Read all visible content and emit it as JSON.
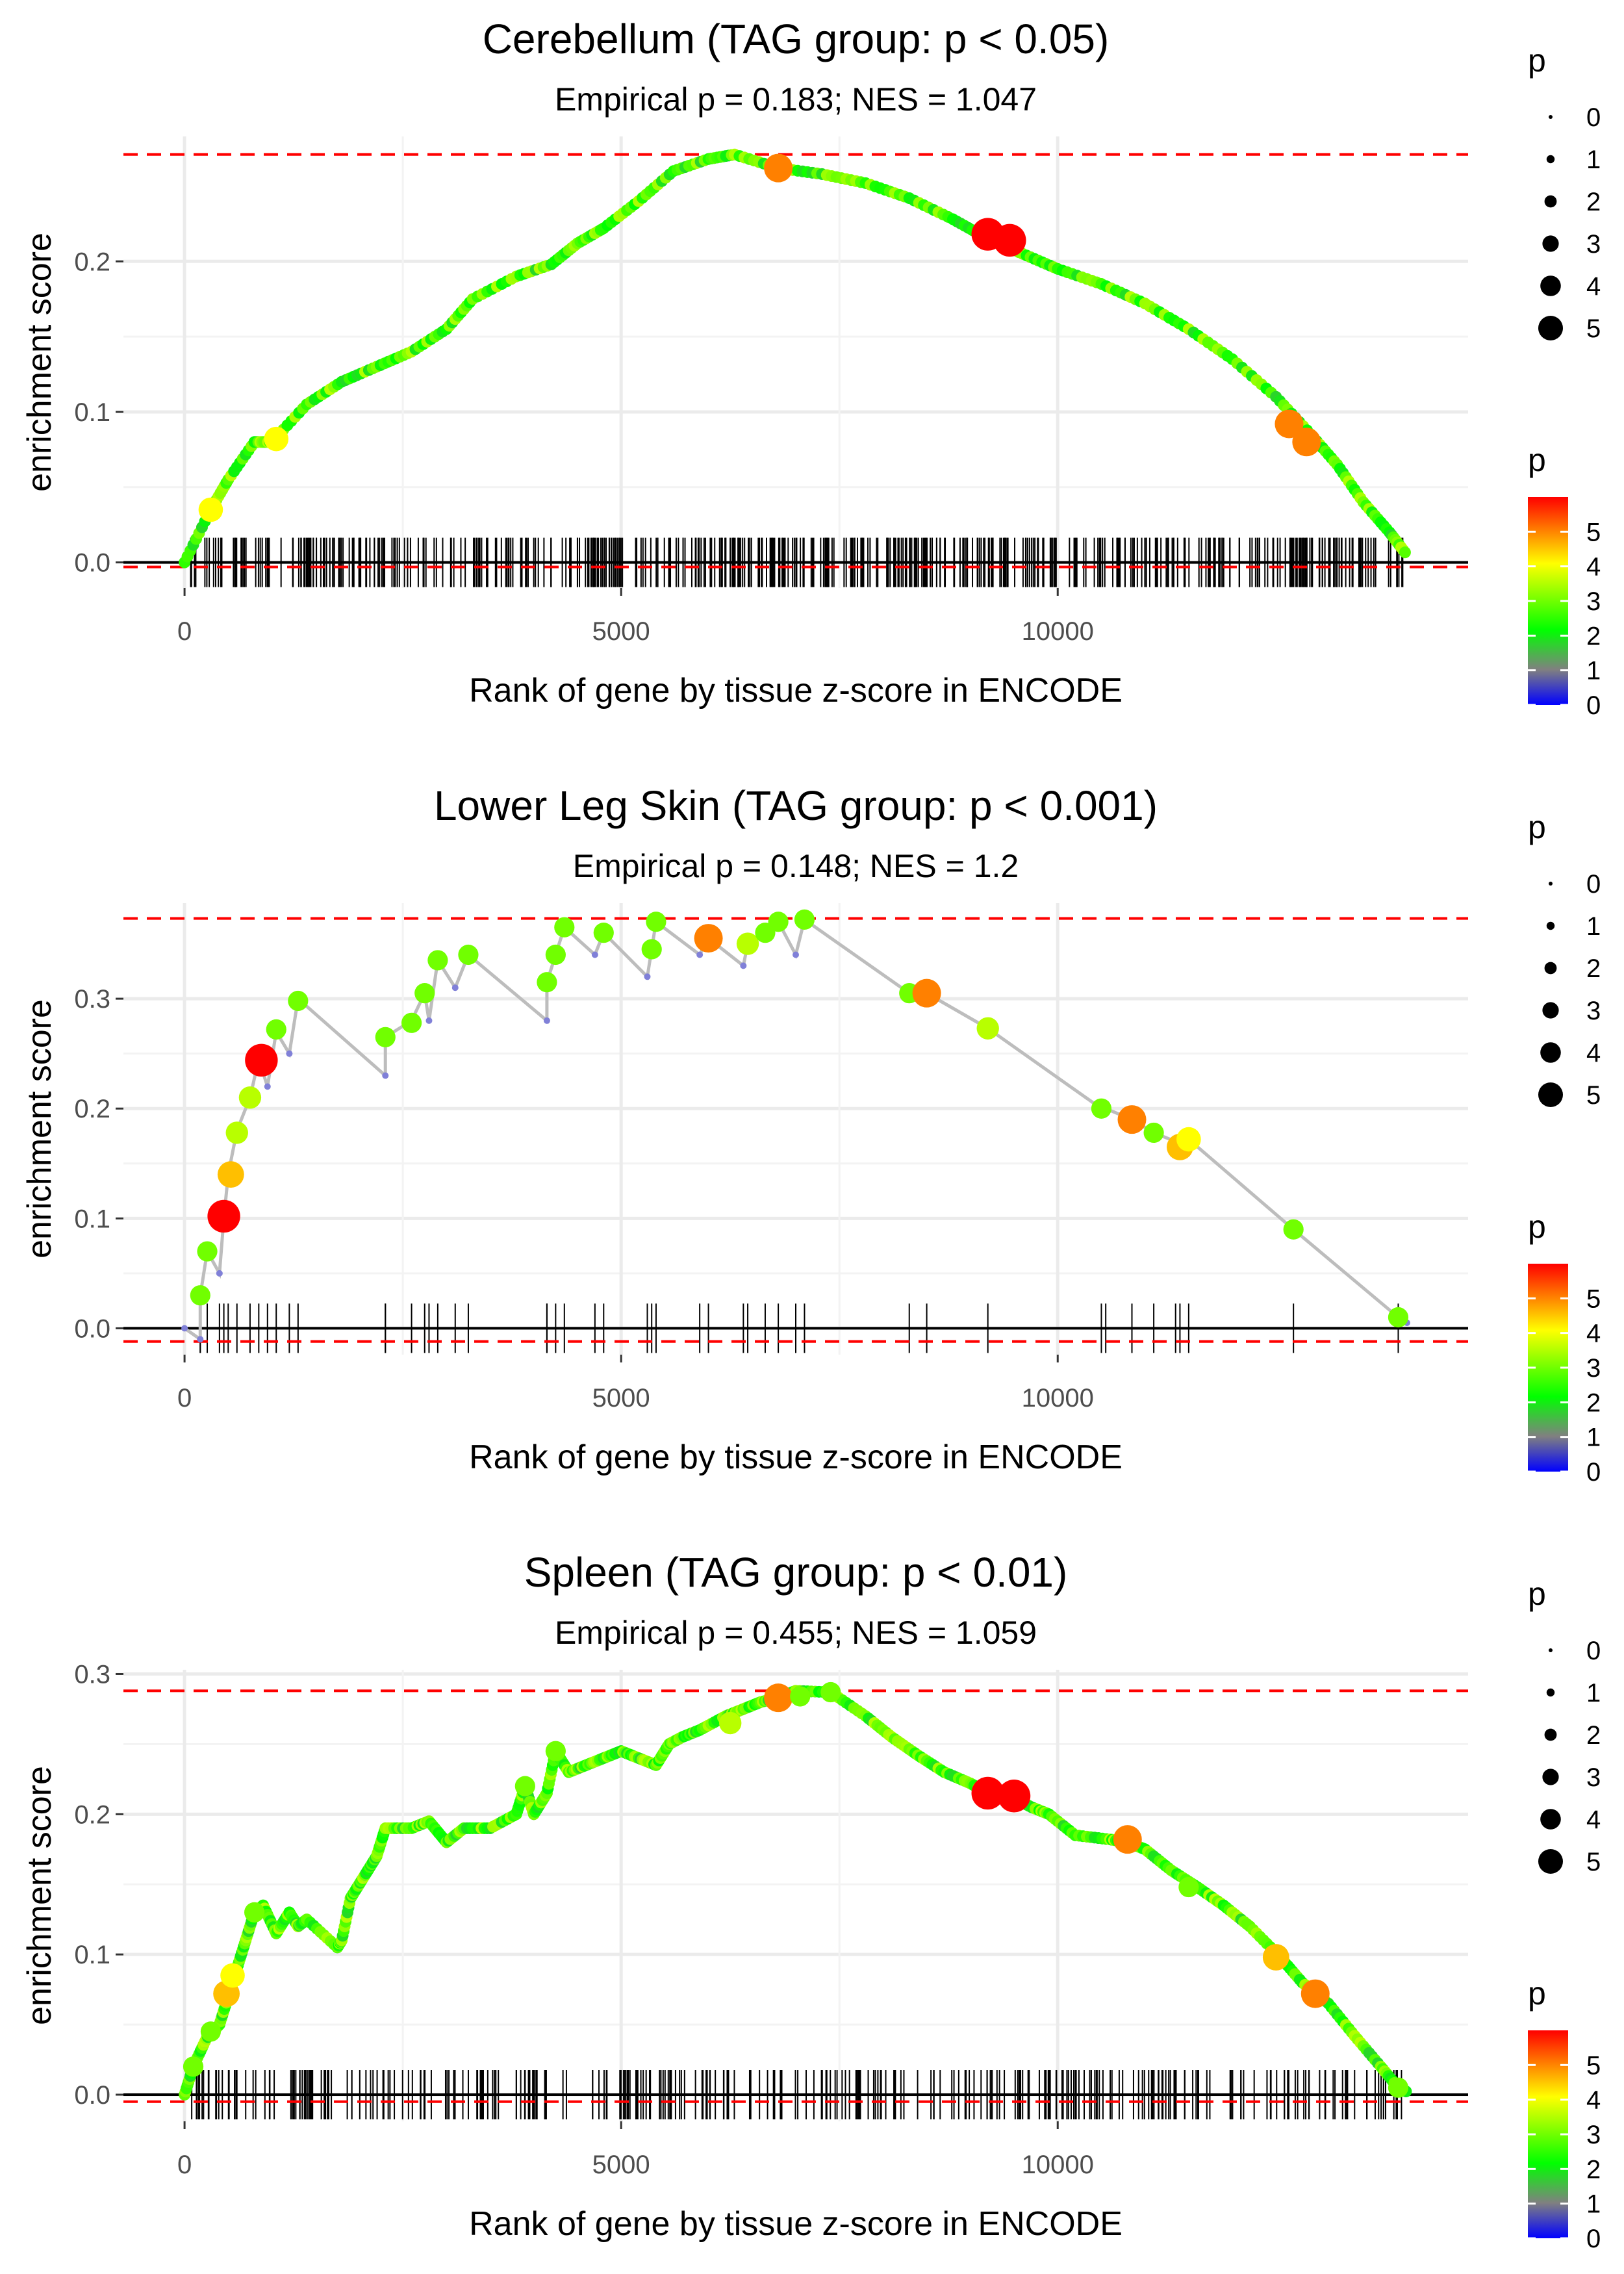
{
  "chart_data": [
    {
      "type": "scatter",
      "title": "Cerebellum (TAG group: p < 0.05)",
      "subtitle": "Empirical p = 0.183; NES = 1.047",
      "xlabel": "Rank of gene by tissue z-score in ENCODE",
      "ylabel": "enrichment score",
      "xlim": [
        -700,
        14700
      ],
      "ylim": [
        -0.017,
        0.283
      ],
      "x_ticks": [
        0,
        5000,
        10000
      ],
      "x_tick_labels": [
        "0",
        "5000",
        "10000"
      ],
      "y_ticks": [
        0.0,
        0.1,
        0.2
      ],
      "y_tick_labels": [
        "0.0",
        "0.1",
        "0.2"
      ],
      "max_es": 0.271,
      "min_es": -0.003,
      "curve": [
        [
          0,
          0
        ],
        [
          300,
          0.035
        ],
        [
          500,
          0.055
        ],
        [
          800,
          0.08
        ],
        [
          1000,
          0.08
        ],
        [
          1400,
          0.105
        ],
        [
          1800,
          0.12
        ],
        [
          2200,
          0.13
        ],
        [
          2600,
          0.14
        ],
        [
          3000,
          0.155
        ],
        [
          3300,
          0.175
        ],
        [
          3800,
          0.19
        ],
        [
          4200,
          0.198
        ],
        [
          4500,
          0.212
        ],
        [
          4800,
          0.222
        ],
        [
          5200,
          0.24
        ],
        [
          5600,
          0.26
        ],
        [
          6000,
          0.268
        ],
        [
          6300,
          0.271
        ],
        [
          6800,
          0.262
        ],
        [
          7300,
          0.258
        ],
        [
          7800,
          0.252
        ],
        [
          8300,
          0.242
        ],
        [
          8800,
          0.228
        ],
        [
          9200,
          0.215
        ],
        [
          9600,
          0.205
        ],
        [
          10000,
          0.195
        ],
        [
          10500,
          0.185
        ],
        [
          11000,
          0.172
        ],
        [
          11500,
          0.155
        ],
        [
          12000,
          0.135
        ],
        [
          12500,
          0.11
        ],
        [
          12900,
          0.085
        ],
        [
          13200,
          0.065
        ],
        [
          13500,
          0.04
        ],
        [
          13800,
          0.02
        ],
        [
          14000,
          0.005
        ]
      ],
      "highlight_points": [
        {
          "x": 300,
          "y": 0.035,
          "p": 4
        },
        {
          "x": 1050,
          "y": 0.082,
          "p": 4
        },
        {
          "x": 6800,
          "y": 0.262,
          "p": 5
        },
        {
          "x": 9200,
          "y": 0.218,
          "p": 6
        },
        {
          "x": 9450,
          "y": 0.214,
          "p": 6
        },
        {
          "x": 12650,
          "y": 0.092,
          "p": 5
        },
        {
          "x": 12850,
          "y": 0.08,
          "p": 5
        }
      ],
      "size_legend": {
        "title": "p",
        "labels": [
          "0",
          "1",
          "2",
          "3",
          "4",
          "5"
        ]
      },
      "color_legend": {
        "title": "p",
        "labels": [
          "5",
          "4",
          "3",
          "2",
          "1",
          "0"
        ]
      }
    },
    {
      "type": "scatter",
      "title": "Lower Leg Skin (TAG group: p < 0.001)",
      "subtitle": "Empirical p = 0.148; NES = 1.2",
      "xlabel": "Rank of gene by tissue z-score in ENCODE",
      "ylabel": "enrichment score",
      "xlim": [
        -700,
        14700
      ],
      "ylim": [
        -0.024,
        0.387
      ],
      "x_ticks": [
        0,
        5000,
        10000
      ],
      "x_tick_labels": [
        "0",
        "5000",
        "10000"
      ],
      "y_ticks": [
        0.0,
        0.1,
        0.2,
        0.3
      ],
      "y_tick_labels": [
        "0.0",
        "0.1",
        "0.2",
        "0.3"
      ],
      "max_es": 0.373,
      "min_es": -0.012,
      "curve": [
        [
          0,
          0
        ],
        [
          180,
          -0.01
        ],
        [
          180,
          0.03
        ],
        [
          260,
          0.07
        ],
        [
          400,
          0.05
        ],
        [
          450,
          0.1
        ],
        [
          500,
          0.14
        ],
        [
          600,
          0.18
        ],
        [
          750,
          0.21
        ],
        [
          850,
          0.245
        ],
        [
          950,
          0.22
        ],
        [
          1050,
          0.27
        ],
        [
          1200,
          0.25
        ],
        [
          1300,
          0.3
        ],
        [
          2300,
          0.23
        ],
        [
          2300,
          0.265
        ],
        [
          2600,
          0.28
        ],
        [
          2750,
          0.305
        ],
        [
          2800,
          0.28
        ],
        [
          2900,
          0.335
        ],
        [
          3100,
          0.31
        ],
        [
          3250,
          0.34
        ],
        [
          4150,
          0.28
        ],
        [
          4150,
          0.315
        ],
        [
          4250,
          0.34
        ],
        [
          4350,
          0.365
        ],
        [
          4700,
          0.34
        ],
        [
          4800,
          0.36
        ],
        [
          5300,
          0.32
        ],
        [
          5350,
          0.345
        ],
        [
          5400,
          0.37
        ],
        [
          5900,
          0.34
        ],
        [
          6000,
          0.355
        ],
        [
          6400,
          0.33
        ],
        [
          6450,
          0.35
        ],
        [
          6650,
          0.36
        ],
        [
          6800,
          0.37
        ],
        [
          7000,
          0.34
        ],
        [
          7100,
          0.372
        ],
        [
          8300,
          0.305
        ],
        [
          8500,
          0.305
        ],
        [
          9200,
          0.273
        ],
        [
          10500,
          0.2
        ],
        [
          10550,
          0.2
        ],
        [
          10850,
          0.19
        ],
        [
          11100,
          0.178
        ],
        [
          11350,
          0.17
        ],
        [
          11400,
          0.165
        ],
        [
          11500,
          0.172
        ],
        [
          12700,
          0.09
        ],
        [
          13900,
          0.01
        ],
        [
          14000,
          0.005
        ]
      ],
      "highlight_points": [
        {
          "x": 180,
          "y": 0.03,
          "p": 3
        },
        {
          "x": 260,
          "y": 0.07,
          "p": 3
        },
        {
          "x": 450,
          "y": 0.102,
          "p": 6
        },
        {
          "x": 530,
          "y": 0.14,
          "p": 4.5
        },
        {
          "x": 600,
          "y": 0.178,
          "p": 3.5
        },
        {
          "x": 750,
          "y": 0.21,
          "p": 3.5
        },
        {
          "x": 880,
          "y": 0.244,
          "p": 6
        },
        {
          "x": 1050,
          "y": 0.272,
          "p": 3
        },
        {
          "x": 1300,
          "y": 0.298,
          "p": 3
        },
        {
          "x": 2300,
          "y": 0.265,
          "p": 3
        },
        {
          "x": 2600,
          "y": 0.278,
          "p": 3
        },
        {
          "x": 2750,
          "y": 0.305,
          "p": 3
        },
        {
          "x": 2900,
          "y": 0.335,
          "p": 3
        },
        {
          "x": 3250,
          "y": 0.34,
          "p": 3
        },
        {
          "x": 4150,
          "y": 0.315,
          "p": 3
        },
        {
          "x": 4250,
          "y": 0.34,
          "p": 3
        },
        {
          "x": 4350,
          "y": 0.365,
          "p": 3
        },
        {
          "x": 4800,
          "y": 0.36,
          "p": 3
        },
        {
          "x": 5350,
          "y": 0.345,
          "p": 3
        },
        {
          "x": 5400,
          "y": 0.37,
          "p": 3
        },
        {
          "x": 6000,
          "y": 0.355,
          "p": 5
        },
        {
          "x": 6450,
          "y": 0.35,
          "p": 3.5
        },
        {
          "x": 6650,
          "y": 0.36,
          "p": 3
        },
        {
          "x": 6800,
          "y": 0.37,
          "p": 3
        },
        {
          "x": 7100,
          "y": 0.372,
          "p": 3
        },
        {
          "x": 8300,
          "y": 0.305,
          "p": 3
        },
        {
          "x": 8500,
          "y": 0.305,
          "p": 5
        },
        {
          "x": 9200,
          "y": 0.273,
          "p": 3.5
        },
        {
          "x": 10500,
          "y": 0.2,
          "p": 3
        },
        {
          "x": 10850,
          "y": 0.19,
          "p": 5
        },
        {
          "x": 11100,
          "y": 0.178,
          "p": 3
        },
        {
          "x": 11400,
          "y": 0.165,
          "p": 4.5
        },
        {
          "x": 11500,
          "y": 0.172,
          "p": 4
        },
        {
          "x": 12700,
          "y": 0.09,
          "p": 3
        },
        {
          "x": 13900,
          "y": 0.01,
          "p": 3
        }
      ],
      "size_legend": {
        "title": "p",
        "labels": [
          "0",
          "1",
          "2",
          "3",
          "4",
          "5"
        ]
      },
      "color_legend": {
        "title": "p",
        "labels": [
          "5",
          "4",
          "3",
          "2",
          "1",
          "0"
        ]
      }
    },
    {
      "type": "scatter",
      "title": "Spleen (TAG group: p < 0.01)",
      "subtitle": "Empirical p = 0.455; NES = 1.059",
      "xlabel": "Rank of gene by tissue z-score in ENCODE",
      "ylabel": "enrichment score",
      "xlim": [
        -700,
        14700
      ],
      "ylim": [
        -0.019,
        0.303
      ],
      "x_ticks": [
        0,
        5000,
        10000
      ],
      "x_tick_labels": [
        "0",
        "5000",
        "10000"
      ],
      "y_ticks": [
        0.0,
        0.1,
        0.2,
        0.3
      ],
      "y_tick_labels": [
        "0.0",
        "0.1",
        "0.2",
        "0.3"
      ],
      "max_es": 0.288,
      "min_es": -0.005,
      "curve": [
        [
          0,
          0
        ],
        [
          100,
          0.02
        ],
        [
          250,
          0.04
        ],
        [
          400,
          0.05
        ],
        [
          500,
          0.07
        ],
        [
          600,
          0.09
        ],
        [
          700,
          0.11
        ],
        [
          800,
          0.13
        ],
        [
          900,
          0.135
        ],
        [
          1050,
          0.115
        ],
        [
          1200,
          0.13
        ],
        [
          1300,
          0.12
        ],
        [
          1400,
          0.125
        ],
        [
          1750,
          0.105
        ],
        [
          1800,
          0.11
        ],
        [
          1900,
          0.14
        ],
        [
          2000,
          0.15
        ],
        [
          2100,
          0.16
        ],
        [
          2200,
          0.17
        ],
        [
          2300,
          0.19
        ],
        [
          2600,
          0.19
        ],
        [
          2800,
          0.195
        ],
        [
          3000,
          0.18
        ],
        [
          3200,
          0.19
        ],
        [
          3500,
          0.19
        ],
        [
          3800,
          0.2
        ],
        [
          3900,
          0.22
        ],
        [
          4000,
          0.2
        ],
        [
          4150,
          0.215
        ],
        [
          4250,
          0.245
        ],
        [
          4400,
          0.23
        ],
        [
          4600,
          0.235
        ],
        [
          4800,
          0.24
        ],
        [
          5000,
          0.245
        ],
        [
          5200,
          0.24
        ],
        [
          5400,
          0.235
        ],
        [
          5550,
          0.25
        ],
        [
          5700,
          0.255
        ],
        [
          5900,
          0.26
        ],
        [
          6200,
          0.27
        ],
        [
          6400,
          0.275
        ],
        [
          6600,
          0.28
        ],
        [
          6800,
          0.283
        ],
        [
          7000,
          0.288
        ],
        [
          7400,
          0.287
        ],
        [
          7800,
          0.27
        ],
        [
          8100,
          0.255
        ],
        [
          8400,
          0.242
        ],
        [
          8700,
          0.23
        ],
        [
          9000,
          0.222
        ],
        [
          9200,
          0.215
        ],
        [
          9450,
          0.213
        ],
        [
          9700,
          0.205
        ],
        [
          9900,
          0.2
        ],
        [
          10200,
          0.185
        ],
        [
          10600,
          0.182
        ],
        [
          10800,
          0.18
        ],
        [
          11000,
          0.175
        ],
        [
          11300,
          0.16
        ],
        [
          11600,
          0.148
        ],
        [
          11900,
          0.135
        ],
        [
          12200,
          0.12
        ],
        [
          12550,
          0.098
        ],
        [
          12800,
          0.08
        ],
        [
          13100,
          0.065
        ],
        [
          13400,
          0.042
        ],
        [
          13700,
          0.02
        ],
        [
          13900,
          0.005
        ],
        [
          14000,
          0.002
        ]
      ],
      "highlight_points": [
        {
          "x": 100,
          "y": 0.02,
          "p": 3
        },
        {
          "x": 300,
          "y": 0.045,
          "p": 3
        },
        {
          "x": 480,
          "y": 0.072,
          "p": 4.5
        },
        {
          "x": 550,
          "y": 0.085,
          "p": 4
        },
        {
          "x": 800,
          "y": 0.13,
          "p": 3
        },
        {
          "x": 3900,
          "y": 0.22,
          "p": 3
        },
        {
          "x": 4250,
          "y": 0.245,
          "p": 3
        },
        {
          "x": 6250,
          "y": 0.265,
          "p": 3.5
        },
        {
          "x": 6800,
          "y": 0.283,
          "p": 5
        },
        {
          "x": 7050,
          "y": 0.284,
          "p": 3
        },
        {
          "x": 7400,
          "y": 0.287,
          "p": 3
        },
        {
          "x": 9200,
          "y": 0.215,
          "p": 6
        },
        {
          "x": 9500,
          "y": 0.213,
          "p": 6
        },
        {
          "x": 10800,
          "y": 0.182,
          "p": 5
        },
        {
          "x": 11500,
          "y": 0.148,
          "p": 3
        },
        {
          "x": 12500,
          "y": 0.098,
          "p": 4.5
        },
        {
          "x": 12950,
          "y": 0.072,
          "p": 5
        },
        {
          "x": 13900,
          "y": 0.005,
          "p": 3
        }
      ],
      "size_legend": {
        "title": "p",
        "labels": [
          "0",
          "1",
          "2",
          "3",
          "4",
          "5"
        ]
      },
      "color_legend": {
        "title": "p",
        "labels": [
          "5",
          "4",
          "3",
          "2",
          "1",
          "0"
        ]
      }
    }
  ]
}
